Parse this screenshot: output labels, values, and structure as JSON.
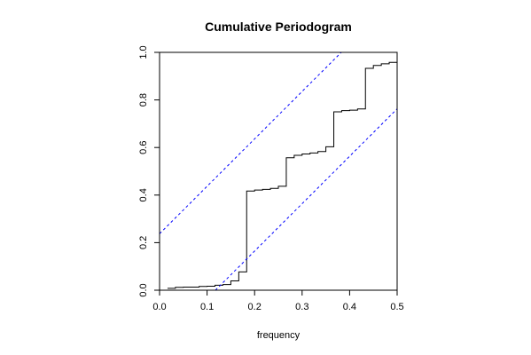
{
  "chart_data": {
    "type": "line",
    "title": "Cumulative Periodogram",
    "xlabel": "frequency",
    "ylabel": "",
    "xlim": [
      0.0,
      0.5
    ],
    "ylim": [
      0.0,
      1.0
    ],
    "x_ticks": [
      "0.0",
      "0.1",
      "0.2",
      "0.3",
      "0.4",
      "0.5"
    ],
    "y_ticks": [
      "0.0",
      "0.2",
      "0.4",
      "0.6",
      "0.8",
      "1.0"
    ],
    "grid": false,
    "legend": "none",
    "series": [
      {
        "kind": "step",
        "color": "#000000",
        "x": [
          0.0167,
          0.0333,
          0.05,
          0.0667,
          0.0833,
          0.1,
          0.1167,
          0.1333,
          0.15,
          0.1667,
          0.1833,
          0.2,
          0.2167,
          0.2333,
          0.25,
          0.2667,
          0.2833,
          0.3,
          0.3167,
          0.3333,
          0.35,
          0.3667,
          0.3833,
          0.4,
          0.4167,
          0.4333,
          0.45,
          0.4667,
          0.4833,
          0.5
        ],
        "y": [
          0.008,
          0.012,
          0.013,
          0.013,
          0.016,
          0.017,
          0.021,
          0.024,
          0.039,
          0.077,
          0.417,
          0.421,
          0.424,
          0.428,
          0.437,
          0.557,
          0.567,
          0.573,
          0.577,
          0.583,
          0.603,
          0.75,
          0.755,
          0.757,
          0.762,
          0.933,
          0.945,
          0.952,
          0.958,
          1.0
        ]
      },
      {
        "kind": "reference",
        "style": "dashed",
        "color": "#0000ff",
        "x": [
          0.0,
          0.3825
        ],
        "y": [
          0.2375,
          1.0
        ]
      },
      {
        "kind": "reference",
        "style": "dashed",
        "color": "#0000ff",
        "x": [
          0.1175,
          0.5
        ],
        "y": [
          0.0,
          0.7625
        ]
      }
    ]
  }
}
